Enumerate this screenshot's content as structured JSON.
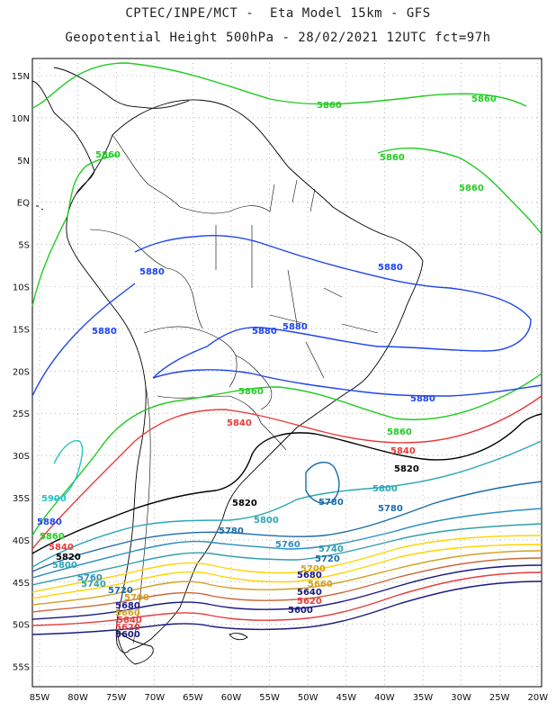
{
  "header": {
    "line1": "CPTEC/INPE/MCT -  Eta Model 15km - GFS",
    "line2": "Geopotential Height 500hPa - 28/02/2021 12UTC fct=97h"
  },
  "map": {
    "lat_labels": [
      "15N",
      "10N",
      "5N",
      "EQ",
      "5S",
      "10S",
      "15S",
      "20S",
      "25S",
      "30S",
      "35S",
      "40S",
      "45S",
      "50S",
      "55S"
    ],
    "lon_labels": [
      "85W",
      "80W",
      "75W",
      "70W",
      "65W",
      "60W",
      "55W",
      "50W",
      "45W",
      "40W",
      "35W",
      "30W",
      "25W",
      "20W"
    ],
    "colors": {
      "c5900": "#22c4c4",
      "c5880": "#1f44ee",
      "c5860": "#22cc22",
      "c5840": "#e83b3b",
      "c5820": "#000000",
      "c5800": "#2aa7b8",
      "c5780": "#1b6ca8",
      "c5760": "#2a8fbf",
      "c5740": "#2f9fa8",
      "c5720": "#ffd400",
      "c5700": "#ffd400",
      "c5680": "#d4a020",
      "c5660": "#c86a3a",
      "c5640": "#1a1a80",
      "c5620": "#e83b3b",
      "c5600": "#1a1a80",
      "coast": "#000000",
      "grid": "#888888"
    },
    "contour_labels": {
      "n5860": "5860",
      "n5880": "5880",
      "n5900": "5900",
      "n5840": "5840",
      "n5820": "5820",
      "n5800": "5800",
      "n5780": "5780",
      "n5760": "5760",
      "n5740": "5740",
      "n5720": "5720",
      "n5700": "5700",
      "n5680": "5680",
      "n5660": "5660",
      "n5640": "5640",
      "n5620": "5620",
      "n5600": "5600"
    }
  }
}
